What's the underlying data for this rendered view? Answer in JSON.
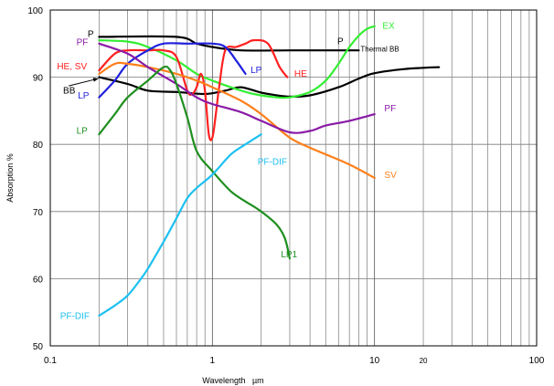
{
  "chart_data": {
    "type": "line",
    "title": "",
    "xlabel": "Wavelength   µm",
    "ylabel": "Absorption  %",
    "xscale": "log",
    "xlim": [
      0.1,
      100
    ],
    "ylim": [
      50,
      100
    ],
    "grid": true,
    "xticks": [
      {
        "v": 0.1,
        "label": "0.1"
      },
      {
        "v": 1,
        "label": "1"
      },
      {
        "v": 10,
        "label": "10"
      },
      {
        "v": 20,
        "label": "20"
      },
      {
        "v": 100,
        "label": "100"
      }
    ],
    "yticks": [
      50,
      60,
      70,
      80,
      90,
      100
    ],
    "series": [
      {
        "name": "P",
        "color": "#000000",
        "x": [
          0.2,
          0.6,
          0.8,
          1.0,
          1.5,
          3.0,
          6.0,
          8.0
        ],
        "y": [
          96.0,
          96.0,
          95.0,
          94.5,
          94.0,
          94.0,
          94.0,
          94.0
        ]
      },
      {
        "name": "Thermal BB",
        "color": "#000000",
        "x": [
          0.2,
          0.3,
          0.4,
          0.6,
          0.9,
          1.2,
          1.5,
          2.0,
          2.5,
          3.0,
          4.0,
          6.0,
          8.0,
          10.0,
          15.0,
          20.0,
          25.0
        ],
        "y": [
          90.0,
          89.0,
          88.0,
          87.8,
          87.5,
          88.0,
          88.5,
          87.7,
          87.3,
          87.1,
          87.3,
          88.5,
          89.8,
          90.6,
          91.2,
          91.4,
          91.5
        ]
      },
      {
        "name": "EX",
        "color": "#33ee33",
        "x": [
          0.2,
          0.3,
          0.4,
          0.6,
          0.8,
          1.0,
          1.3,
          1.8,
          2.5,
          3.0,
          4.0,
          5.0,
          6.0,
          7.0,
          8.0,
          9.0,
          10.0
        ],
        "y": [
          95.5,
          95.3,
          94.5,
          92.5,
          90.5,
          89.5,
          88.5,
          87.5,
          87.0,
          87.0,
          87.8,
          89.5,
          92.0,
          94.5,
          96.2,
          97.2,
          97.6
        ]
      },
      {
        "name": "HE",
        "color": "#ff2020",
        "x": [
          0.2,
          0.25,
          0.3,
          0.4,
          0.5,
          0.6,
          0.7,
          0.75,
          0.8,
          0.85,
          0.9,
          0.95,
          1.0,
          1.05,
          1.1,
          1.2,
          1.4,
          1.6,
          1.8,
          2.2,
          2.6,
          2.9
        ],
        "y": [
          91.0,
          93.5,
          94.0,
          94.0,
          94.0,
          93.0,
          88.0,
          87.5,
          88.5,
          90.5,
          88.0,
          81.5,
          81.0,
          84.5,
          88.5,
          94.0,
          94.5,
          95.0,
          95.5,
          95.0,
          91.5,
          90.0
        ]
      },
      {
        "name": "LP",
        "color": "#1f1fdd",
        "x": [
          0.2,
          0.25,
          0.3,
          0.4,
          0.5,
          0.7,
          1.0,
          1.2,
          1.4,
          1.6
        ],
        "y": [
          87.0,
          89.5,
          92.0,
          94.0,
          95.0,
          95.0,
          95.0,
          94.5,
          92.5,
          90.5
        ]
      },
      {
        "name": "SV",
        "color": "#ff7f1a",
        "x": [
          0.2,
          0.25,
          0.3,
          0.4,
          0.6,
          0.8,
          1.0,
          1.5,
          2.0,
          3.0,
          4.0,
          5.0,
          7.0,
          10.0
        ],
        "y": [
          90.5,
          92.0,
          92.0,
          91.5,
          90.5,
          89.5,
          88.5,
          86.5,
          84.5,
          81.0,
          79.5,
          78.5,
          77.0,
          75.0
        ]
      },
      {
        "name": "PF",
        "color": "#8a1aa6",
        "x": [
          0.2,
          0.3,
          0.4,
          0.6,
          0.8,
          1.0,
          1.5,
          2.0,
          3.0,
          4.0,
          5.0,
          7.0,
          10.0
        ],
        "y": [
          95.0,
          93.5,
          91.5,
          89.0,
          87.0,
          86.0,
          84.8,
          83.5,
          81.8,
          82.0,
          82.8,
          83.5,
          84.5
        ]
      },
      {
        "name": "LP1",
        "color": "#1e8f1e",
        "x": [
          0.2,
          0.25,
          0.3,
          0.4,
          0.5,
          0.55,
          0.6,
          0.7,
          0.8,
          1.0,
          1.3,
          1.6,
          2.0,
          2.5,
          2.8,
          3.0
        ],
        "y": [
          81.5,
          84.5,
          87.0,
          89.5,
          91.5,
          91.0,
          89.0,
          84.0,
          79.0,
          76.0,
          73.0,
          71.5,
          70.0,
          68.0,
          66.0,
          63.0
        ]
      },
      {
        "name": "PF-DIF",
        "color": "#1ec0f0",
        "x": [
          0.2,
          0.25,
          0.3,
          0.35,
          0.4,
          0.5,
          0.6,
          0.7,
          0.8,
          1.0,
          1.3,
          1.6,
          2.0
        ],
        "y": [
          54.5,
          56.0,
          57.5,
          59.5,
          61.5,
          65.5,
          69.0,
          72.0,
          73.5,
          75.5,
          78.5,
          80.0,
          81.5
        ]
      }
    ],
    "labels": [
      {
        "text": "P",
        "x": 0.17,
        "y": 96.0,
        "color": "#000000"
      },
      {
        "text": "P",
        "x": 5.9,
        "y": 94.9,
        "color": "#000000"
      },
      {
        "text": "PF",
        "x": 0.145,
        "y": 94.8,
        "color": "#8a1aa6"
      },
      {
        "text": "HE, SV",
        "x": 0.11,
        "y": 91.2,
        "color": "#ff2020"
      },
      {
        "text": "BB",
        "x": 0.12,
        "y": 87.6,
        "color": "#000000"
      },
      {
        "text": "LP",
        "x": 0.148,
        "y": 86.8,
        "color": "#1f1fdd"
      },
      {
        "text": "LP",
        "x": 0.145,
        "y": 81.6,
        "color": "#1e8f1e"
      },
      {
        "text": "EX",
        "x": 11.2,
        "y": 97.2,
        "color": "#33ee33"
      },
      {
        "text": "Thermal BB",
        "x": 8.2,
        "y": 93.8,
        "color": "#000000"
      },
      {
        "text": "LP",
        "x": 1.72,
        "y": 90.6,
        "color": "#1f1fdd"
      },
      {
        "text": "HE",
        "x": 3.2,
        "y": 90.1,
        "color": "#ff2020"
      },
      {
        "text": "PF",
        "x": 11.5,
        "y": 84.9,
        "color": "#8a1aa6"
      },
      {
        "text": "SV",
        "x": 11.5,
        "y": 75.0,
        "color": "#ff7f1a"
      },
      {
        "text": "PF-DIF",
        "x": 1.9,
        "y": 77.0,
        "color": "#1ec0f0"
      },
      {
        "text": "LP1",
        "x": 2.65,
        "y": 63.2,
        "color": "#1e8f1e"
      },
      {
        "text": "PF-DIF",
        "x": 0.115,
        "y": 54.0,
        "color": "#1ec0f0"
      }
    ],
    "arrow": {
      "from_x": 0.13,
      "from_y": 88.7,
      "to_x": 0.198,
      "to_y": 89.8,
      "color": "#000000"
    }
  }
}
